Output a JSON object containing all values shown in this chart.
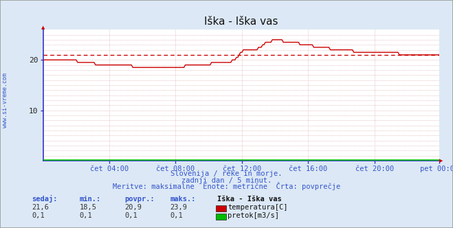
{
  "title": "Iška - Iška vas",
  "bg_color": "#dce8f5",
  "plot_bg_color": "#ffffff",
  "grid_color": "#ddaaaa",
  "axis_color": "#3333cc",
  "line_color_temp": "#cc0000",
  "line_color_flow": "#00bb00",
  "avg_line_color": "#cc0000",
  "x_labels": [
    "čet 04:00",
    "čet 08:00",
    "čet 12:00",
    "čet 16:00",
    "čet 20:00",
    "pet 00:00"
  ],
  "x_tick_positions": [
    48,
    96,
    144,
    192,
    240,
    287
  ],
  "y_ticks": [
    10,
    20
  ],
  "ylim": [
    0,
    26
  ],
  "xlim": [
    0,
    287
  ],
  "avg_value": 21.0,
  "subtitle1": "Slovenija / reke in morje.",
  "subtitle2": "zadnji dan / 5 minut.",
  "subtitle3": "Meritve: maksimalne  Enote: metrične  Črta: povprečje",
  "legend_title": "Iška - Iška vas",
  "legend_items": [
    {
      "label": "temperatura[C]",
      "color": "#cc0000"
    },
    {
      "label": "pretok[m3/s]",
      "color": "#00bb00"
    }
  ],
  "stats_headers": [
    "sedaj:",
    "min.:",
    "povpr.:",
    "maks.:"
  ],
  "stats_temp": [
    "21,6",
    "18,5",
    "20,9",
    "23,9"
  ],
  "stats_flow": [
    "0,1",
    "0,1",
    "0,1",
    "0,1"
  ],
  "watermark": "www.si-vreme.com",
  "figwidth": 6.59,
  "figheight": 3.32,
  "dpi": 100
}
